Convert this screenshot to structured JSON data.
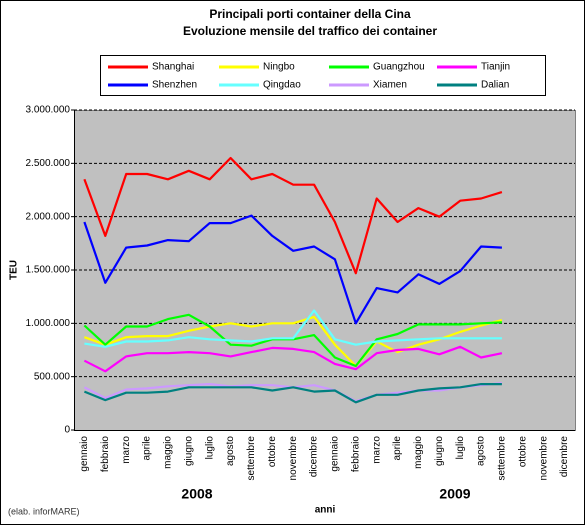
{
  "chart_data": {
    "type": "line",
    "title": "Principali porti container della Cina",
    "subtitle": "Evoluzione mensile del traffico dei container",
    "y_label": "TEU",
    "x_label": "anni",
    "year_labels": [
      "2008",
      "2009"
    ],
    "source_note": "(elab. inforMARE)",
    "categories": [
      "gennaio",
      "febbraio",
      "marzo",
      "aprile",
      "maggio",
      "giugno",
      "luglio",
      "agosto",
      "settembre",
      "ottobre",
      "novembre",
      "dicembre",
      "gennaio",
      "febbraio",
      "marzo",
      "aprile",
      "maggio",
      "giugno",
      "luglio",
      "agosto",
      "settembre",
      "ottobre",
      "novembre",
      "dicembre"
    ],
    "ylim": [
      0,
      3000000
    ],
    "yticks": [
      0,
      {
        "value": 500000,
        "label": "500.000"
      },
      {
        "value": 1000000,
        "label": "1.000.000"
      },
      {
        "value": 1500000,
        "label": "1.500.000"
      },
      {
        "value": 2000000,
        "label": "2.000.000"
      },
      {
        "value": 2500000,
        "label": "2.500.000"
      },
      {
        "value": 3000000,
        "label": "3.000.000"
      }
    ],
    "grid": true,
    "series": [
      {
        "name": "Shanghai",
        "color": "#ff0000",
        "values": [
          2350000,
          1820000,
          2400000,
          2400000,
          2350000,
          2430000,
          2350000,
          2550000,
          2350000,
          2400000,
          2300000,
          2300000,
          1950000,
          1470000,
          2170000,
          1950000,
          2080000,
          2000000,
          2150000,
          2170000,
          2230000,
          null,
          null,
          null
        ]
      },
      {
        "name": "Ningbo",
        "color": "#ffff00",
        "values": [
          870000,
          800000,
          870000,
          880000,
          880000,
          930000,
          970000,
          1000000,
          970000,
          1000000,
          1000000,
          1060000,
          800000,
          600000,
          830000,
          730000,
          800000,
          850000,
          920000,
          980000,
          1030000,
          null,
          null,
          null
        ]
      },
      {
        "name": "Guangzhou",
        "color": "#00ff00",
        "values": [
          980000,
          800000,
          970000,
          970000,
          1040000,
          1080000,
          970000,
          800000,
          790000,
          850000,
          850000,
          890000,
          680000,
          600000,
          850000,
          900000,
          990000,
          990000,
          990000,
          1000000,
          1010000,
          null,
          null,
          null
        ]
      },
      {
        "name": "Tianjin",
        "color": "#ff00ff",
        "values": [
          650000,
          550000,
          690000,
          720000,
          720000,
          730000,
          720000,
          690000,
          730000,
          770000,
          760000,
          730000,
          620000,
          570000,
          720000,
          750000,
          760000,
          710000,
          780000,
          680000,
          720000,
          null,
          null,
          null
        ]
      },
      {
        "name": "Shenzhen",
        "color": "#0000ff",
        "values": [
          1950000,
          1380000,
          1710000,
          1730000,
          1780000,
          1770000,
          1940000,
          1940000,
          2010000,
          1820000,
          1680000,
          1720000,
          1600000,
          1000000,
          1330000,
          1290000,
          1460000,
          1370000,
          1490000,
          1720000,
          1710000,
          null,
          null,
          null
        ]
      },
      {
        "name": "Qingdao",
        "color": "#66ffff",
        "values": [
          810000,
          780000,
          830000,
          830000,
          840000,
          870000,
          850000,
          840000,
          830000,
          860000,
          860000,
          1120000,
          850000,
          800000,
          830000,
          840000,
          850000,
          860000,
          860000,
          860000,
          860000,
          null,
          null,
          null
        ]
      },
      {
        "name": "Xiamen",
        "color": "#cc99ff",
        "values": [
          400000,
          300000,
          380000,
          390000,
          410000,
          420000,
          430000,
          410000,
          420000,
          420000,
          400000,
          420000,
          370000,
          270000,
          330000,
          350000,
          370000,
          370000,
          400000,
          420000,
          440000,
          null,
          null,
          null
        ]
      },
      {
        "name": "Dalian",
        "color": "#008080",
        "values": [
          360000,
          280000,
          350000,
          350000,
          360000,
          400000,
          400000,
          400000,
          400000,
          370000,
          400000,
          360000,
          370000,
          260000,
          330000,
          330000,
          370000,
          390000,
          400000,
          430000,
          430000,
          null,
          null,
          null
        ]
      }
    ]
  }
}
